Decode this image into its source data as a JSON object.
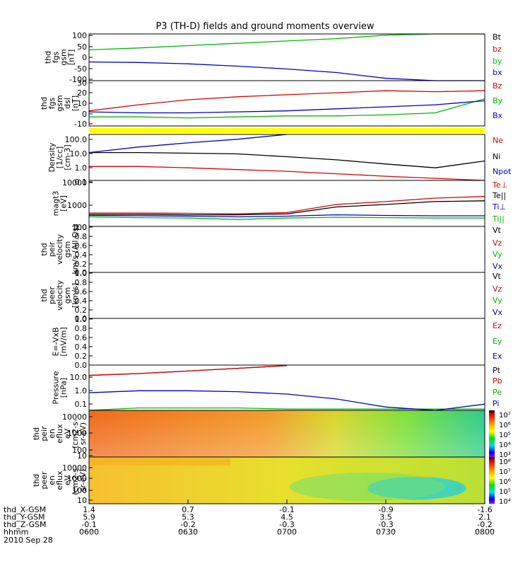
{
  "title": "P3 (TH-D) fields and ground moments overview",
  "time_ticks": [
    "0600",
    "0630",
    "0700",
    "0730",
    "0800"
  ],
  "footer": {
    "rows": [
      {
        "label": "thd_X-GSM",
        "values": [
          "1.4",
          "0.7",
          "-0.1",
          "-0.9",
          "-1.6"
        ]
      },
      {
        "label": "thd_Y-GSM",
        "values": [
          "5.9",
          "5.3",
          "4.5",
          "3.5",
          "2.1"
        ]
      },
      {
        "label": "thd_Z-GSM",
        "values": [
          "-0.1",
          "-0.2",
          "-0.3",
          "-0.3",
          "-0.2"
        ]
      },
      {
        "label": "hhmm",
        "values": [
          "0600",
          "0630",
          "0700",
          "0730",
          "0800"
        ]
      }
    ],
    "date": "2010 Sep 28"
  },
  "panels": [
    {
      "id": "fgs_gsm",
      "ylabel": [
        "thd",
        "fgs",
        "gsm",
        "[nT]"
      ],
      "ticks": [
        "100",
        "50",
        "0",
        "-50",
        "-100"
      ],
      "legend": [
        {
          "text": "Bt",
          "color": "#000000"
        },
        {
          "text": "bz",
          "color": "#dd0000"
        },
        {
          "text": "by",
          "color": "#00bb00"
        },
        {
          "text": "bx",
          "color": "#0000cc"
        }
      ]
    },
    {
      "id": "fgs_dsl",
      "ylabel": [
        "thd",
        "fgs",
        "gsm",
        "dsl",
        "[nT]"
      ],
      "ticks": [
        "30",
        "20",
        "10",
        "0",
        "-10"
      ],
      "legend": [
        {
          "text": "Bz",
          "color": "#dd0000"
        },
        {
          "text": "By",
          "color": "#00bb00"
        },
        {
          "text": "Bx",
          "color": "#0000cc"
        }
      ]
    },
    {
      "id": "density",
      "ylabel": [
        "Density",
        "[1/cc]",
        "[cm-3]"
      ],
      "ticks": [
        "100.0",
        "10.0",
        "1.0",
        "0.1"
      ],
      "legend": [
        {
          "text": "Ne",
          "color": "#dd0000"
        },
        {
          "text": "Ni",
          "color": "#000000"
        },
        {
          "text": "Npot",
          "color": "#0000cc"
        }
      ]
    },
    {
      "id": "temp",
      "ylabel": [
        "magt3",
        "[eV]"
      ],
      "ticks": [
        "10000",
        "1000",
        "100"
      ],
      "legend": [
        {
          "text": "Te⊥",
          "color": "#dd0000"
        },
        {
          "text": "Te||",
          "color": "#000000"
        },
        {
          "text": "Ti⊥",
          "color": "#0000cc"
        },
        {
          "text": "Ti||",
          "color": "#00bb00"
        }
      ]
    },
    {
      "id": "peir_vel",
      "ylabel": [
        "thd",
        "peir",
        "velocity",
        "gsm",
        "km/s (All Qs)"
      ],
      "ticks": [
        "1.0",
        "0.8",
        "0.6",
        "0.4",
        "0.2",
        "0.0"
      ],
      "legend": [
        {
          "text": "Vt",
          "color": "#000000"
        },
        {
          "text": "Vz",
          "color": "#dd0000"
        },
        {
          "text": "Vy",
          "color": "#00bb00"
        },
        {
          "text": "Vx",
          "color": "#0000cc"
        }
      ]
    },
    {
      "id": "peer_vel",
      "ylabel": [
        "thd",
        "peer",
        "velocity",
        "gsm",
        "[km/s]"
      ],
      "ticks": [
        "1.0",
        "0.8",
        "0.6",
        "0.4",
        "0.2",
        "0.0"
      ],
      "legend": [
        {
          "text": "Vt",
          "color": "#000000"
        },
        {
          "text": "Vz",
          "color": "#dd0000"
        },
        {
          "text": "Vy",
          "color": "#00bb00"
        },
        {
          "text": "Vx",
          "color": "#0000cc"
        }
      ]
    },
    {
      "id": "efield",
      "ylabel": [
        "E=-VxB",
        "[mV/m]"
      ],
      "ticks": [
        "1.0",
        "0.8",
        "0.6",
        "0.4",
        "0.2",
        "0.0"
      ],
      "legend": [
        {
          "text": "Ez",
          "color": "#dd0000"
        },
        {
          "text": "Ey",
          "color": "#00bb00"
        },
        {
          "text": "Ex",
          "color": "#0000cc"
        }
      ]
    },
    {
      "id": "pressure",
      "ylabel": [
        "Pressure",
        "[nPa]"
      ],
      "ticks": [
        "10.0",
        "1.0",
        "0.1"
      ],
      "legend": [
        {
          "text": "Pt",
          "color": "#000000"
        },
        {
          "text": "Pb",
          "color": "#dd0000"
        },
        {
          "text": "Pe",
          "color": "#00bb00"
        },
        {
          "text": "Pi",
          "color": "#0000cc"
        }
      ]
    },
    {
      "id": "peir_spec",
      "ylabel": [
        "thd",
        "peir",
        "en",
        "eflux",
        "eV",
        "(cm2-s-",
        "sr-eV)"
      ],
      "ticks": [
        "10000",
        "1000",
        "100",
        "10"
      ],
      "colorbar": [
        "10⁷",
        "10⁶",
        "10⁵",
        "10⁴",
        "10³"
      ]
    },
    {
      "id": "peer_spec",
      "ylabel": [
        "thd",
        "peer",
        "en",
        "eflux",
        "eV",
        "(cm2-s-",
        "sr-eV)"
      ],
      "ticks": [
        "10000",
        "1000",
        "100",
        "10"
      ],
      "colorbar": [
        "10⁸",
        "10⁷",
        "10⁶",
        "10⁵",
        "10⁴"
      ]
    }
  ],
  "chart_data": [
    {
      "type": "line",
      "panel": "fgs_gsm",
      "ylim": [
        -100,
        100
      ],
      "x": [
        "0600",
        "0615",
        "0630",
        "0645",
        "0700",
        "0715",
        "0730",
        "0745",
        "0800"
      ],
      "series": [
        {
          "name": "by",
          "color": "#00bb00",
          "values": [
            32,
            40,
            50,
            60,
            70,
            80,
            95,
            105,
            110
          ]
        },
        {
          "name": "bx",
          "color": "#0000cc",
          "values": [
            -20,
            -22,
            -28,
            -38,
            -50,
            -65,
            -90,
            -105,
            -110
          ]
        }
      ]
    },
    {
      "type": "line",
      "panel": "fgs_dsl",
      "ylim": [
        -15,
        30
      ],
      "x": [
        "0600",
        "0615",
        "0630",
        "0645",
        "0700",
        "0715",
        "0730",
        "0745",
        "0800"
      ],
      "series": [
        {
          "name": "Bz",
          "color": "#dd0000",
          "values": [
            0,
            6,
            11,
            14,
            16,
            18,
            20,
            19,
            20
          ]
        },
        {
          "name": "By",
          "color": "#00bb00",
          "values": [
            -6,
            -6,
            -7,
            -6,
            -5,
            -5,
            -4,
            -2,
            12
          ]
        },
        {
          "name": "Bx",
          "color": "#0000cc",
          "values": [
            -1,
            -2,
            -2,
            -1,
            0,
            2,
            4,
            6,
            10
          ]
        }
      ]
    },
    {
      "type": "line",
      "panel": "density",
      "ylog": true,
      "ylim": [
        0.1,
        200
      ],
      "x": [
        "0600",
        "0615",
        "0630",
        "0645",
        "0700",
        "0715",
        "0730",
        "0745",
        "0800"
      ],
      "series": [
        {
          "name": "Ne",
          "color": "#dd0000",
          "values": [
            1.0,
            1.0,
            0.8,
            0.6,
            0.45,
            0.3,
            0.2,
            0.14,
            0.1
          ]
        },
        {
          "name": "Ni",
          "color": "#000000",
          "values": [
            10,
            10,
            9,
            8,
            5,
            3,
            1.5,
            0.8,
            2.5
          ]
        },
        {
          "name": "Npot",
          "color": "#0000cc",
          "values": [
            10,
            25,
            50,
            90,
            200,
            null,
            null,
            null,
            null
          ]
        }
      ]
    },
    {
      "type": "line",
      "panel": "temp",
      "ylog": true,
      "ylim": [
        100,
        10000
      ],
      "x": [
        "0600",
        "0615",
        "0630",
        "0645",
        "0700",
        "0715",
        "0730",
        "0745",
        "0800"
      ],
      "series": [
        {
          "name": "Te⊥",
          "color": "#dd0000",
          "values": [
            380,
            380,
            370,
            350,
            400,
            900,
            1200,
            1700,
            2000
          ]
        },
        {
          "name": "Te||",
          "color": "#000000",
          "values": [
            330,
            330,
            320,
            320,
            350,
            700,
            900,
            1200,
            1300
          ]
        },
        {
          "name": "Ti⊥",
          "color": "#0000cc",
          "values": [
            300,
            290,
            280,
            260,
            280,
            320,
            300,
            290,
            290
          ]
        },
        {
          "name": "Ti||",
          "color": "#00bb00",
          "values": [
            260,
            240,
            230,
            200,
            230,
            250,
            240,
            230,
            230
          ]
        }
      ]
    },
    {
      "type": "line",
      "panel": "pressure",
      "ylog": true,
      "ylim": [
        0.05,
        30
      ],
      "x": [
        "0600",
        "0615",
        "0630",
        "0645",
        "0700",
        "0715",
        "0730",
        "0745",
        "0800"
      ],
      "series": [
        {
          "name": "Pt",
          "color": "#000000",
          "values": [
            7,
            9,
            13,
            19,
            28,
            null,
            null,
            null,
            null
          ]
        },
        {
          "name": "Pb",
          "color": "#dd0000",
          "values": [
            7,
            9,
            13,
            19,
            28,
            null,
            null,
            null,
            null
          ]
        },
        {
          "name": "Pe",
          "color": "#00bb00",
          "values": [
            0.05,
            0.07,
            0.07,
            0.07,
            0.06,
            0.06,
            0.06,
            0.06,
            0.06
          ]
        },
        {
          "name": "Pi",
          "color": "#0000cc",
          "values": [
            0.6,
            0.8,
            0.8,
            0.7,
            0.5,
            0.25,
            0.08,
            0.04,
            0.12
          ]
        }
      ]
    },
    {
      "type": "heatmap",
      "panel": "peir_spec",
      "ylog": true,
      "ylim": [
        5,
        20000
      ]
    },
    {
      "type": "heatmap",
      "panel": "peer_spec",
      "ylog": true,
      "ylim": [
        5,
        20000
      ]
    }
  ]
}
